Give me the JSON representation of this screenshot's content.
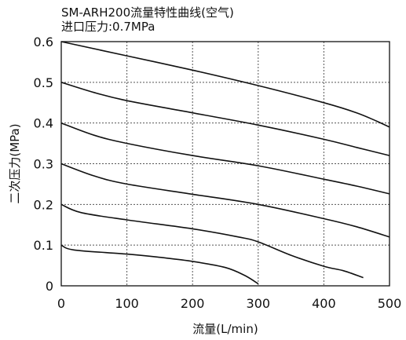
{
  "chart_data": {
    "type": "line",
    "title": "SM-ARH200流量特性曲线(空气)",
    "subtitle": "进口压力:0.7MPa",
    "xlabel": "流量(L/min)",
    "ylabel": "二次压力(MPa)",
    "xlim": [
      0,
      500
    ],
    "ylim": [
      0,
      0.6
    ],
    "x_ticks": [
      "0",
      "100",
      "200",
      "300",
      "400",
      "500"
    ],
    "y_ticks": [
      "0",
      "0.1",
      "0.2",
      "0.3",
      "0.4",
      "0.5",
      "0.6"
    ],
    "grid": true,
    "series": [
      {
        "points": [
          [
            0,
            0.6
          ],
          [
            100,
            0.565
          ],
          [
            200,
            0.53
          ],
          [
            300,
            0.492
          ],
          [
            400,
            0.45
          ],
          [
            450,
            0.425
          ],
          [
            480,
            0.405
          ],
          [
            500,
            0.39
          ]
        ]
      },
      {
        "points": [
          [
            0,
            0.5
          ],
          [
            50,
            0.475
          ],
          [
            100,
            0.455
          ],
          [
            200,
            0.425
          ],
          [
            300,
            0.395
          ],
          [
            400,
            0.36
          ],
          [
            450,
            0.34
          ],
          [
            500,
            0.32
          ]
        ]
      },
      {
        "points": [
          [
            0,
            0.4
          ],
          [
            50,
            0.37
          ],
          [
            100,
            0.35
          ],
          [
            200,
            0.32
          ],
          [
            300,
            0.295
          ],
          [
            400,
            0.262
          ],
          [
            450,
            0.245
          ],
          [
            500,
            0.226
          ]
        ]
      },
      {
        "points": [
          [
            0,
            0.3
          ],
          [
            50,
            0.27
          ],
          [
            100,
            0.25
          ],
          [
            200,
            0.225
          ],
          [
            300,
            0.2
          ],
          [
            400,
            0.165
          ],
          [
            450,
            0.145
          ],
          [
            500,
            0.12
          ]
        ]
      },
      {
        "points": [
          [
            0,
            0.2
          ],
          [
            30,
            0.18
          ],
          [
            100,
            0.162
          ],
          [
            200,
            0.14
          ],
          [
            270,
            0.12
          ],
          [
            300,
            0.108
          ],
          [
            350,
            0.075
          ],
          [
            400,
            0.048
          ],
          [
            430,
            0.037
          ],
          [
            460,
            0.02
          ]
        ]
      },
      {
        "points": [
          [
            0,
            0.1
          ],
          [
            20,
            0.088
          ],
          [
            100,
            0.078
          ],
          [
            150,
            0.07
          ],
          [
            200,
            0.06
          ],
          [
            250,
            0.045
          ],
          [
            280,
            0.025
          ],
          [
            300,
            0.005
          ]
        ]
      }
    ],
    "colors": {
      "line": "#111111",
      "grid": "#555555",
      "axes": "#111111"
    }
  }
}
